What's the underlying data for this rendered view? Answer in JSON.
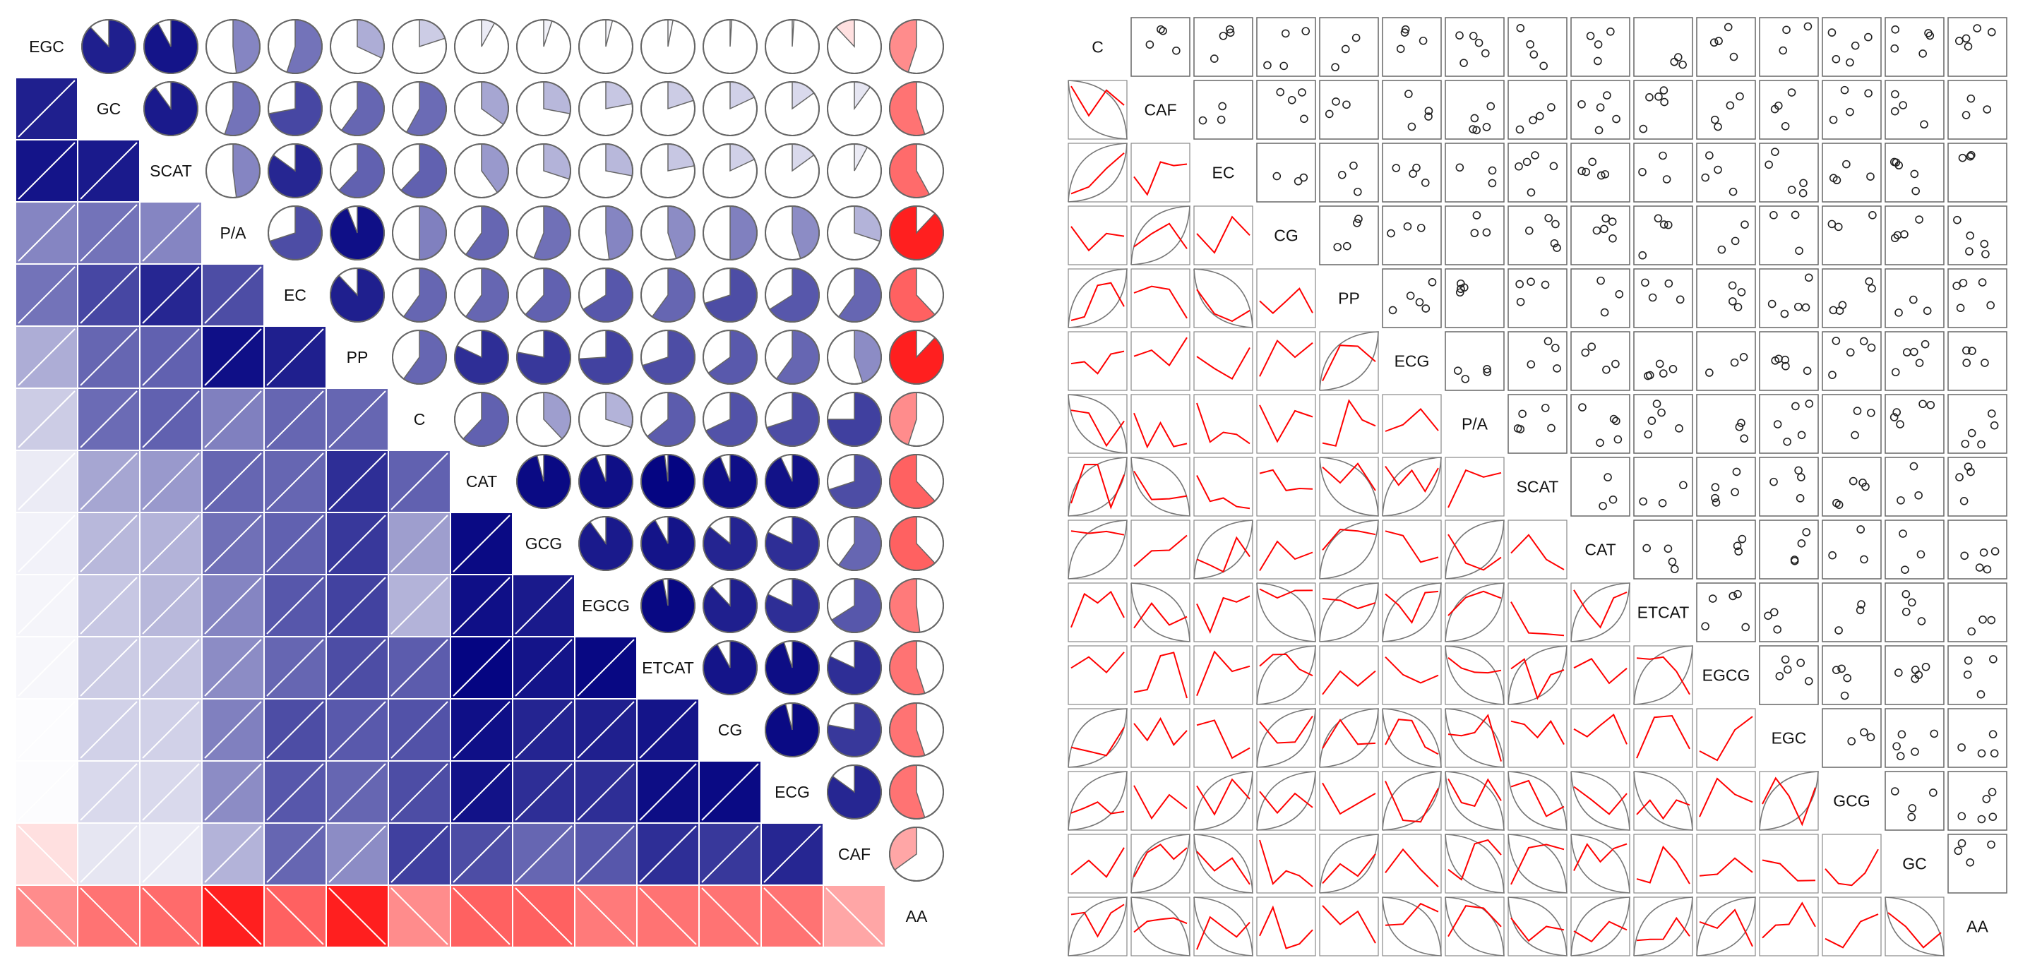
{
  "chart_data": [
    {
      "type": "heatmap",
      "variables": [
        "EGC",
        "GC",
        "SCAT",
        "P/A",
        "EC",
        "PP",
        "C",
        "CAT",
        "GCG",
        "EGCG",
        "ETCAT",
        "CG",
        "ECG",
        "CAF",
        "AA"
      ],
      "lower_panel": "shade",
      "upper_panel": "pie",
      "correlations": [
        [
          1.0,
          0.88,
          0.92,
          0.48,
          0.55,
          0.32,
          0.2,
          0.08,
          0.05,
          0.04,
          0.03,
          0.01,
          0.01,
          -0.12,
          -0.45
        ],
        [
          0.88,
          1.0,
          0.9,
          0.55,
          0.72,
          0.6,
          0.58,
          0.35,
          0.28,
          0.22,
          0.2,
          0.18,
          0.15,
          0.1,
          -0.55
        ],
        [
          0.92,
          0.9,
          1.0,
          0.48,
          0.85,
          0.62,
          0.62,
          0.4,
          0.3,
          0.28,
          0.22,
          0.18,
          0.15,
          0.08,
          -0.58
        ],
        [
          0.48,
          0.55,
          0.48,
          1.0,
          0.7,
          0.94,
          0.5,
          0.6,
          0.56,
          0.48,
          0.45,
          0.5,
          0.45,
          0.3,
          -0.88
        ],
        [
          0.55,
          0.72,
          0.85,
          0.7,
          1.0,
          0.88,
          0.6,
          0.6,
          0.62,
          0.66,
          0.6,
          0.7,
          0.66,
          0.6,
          -0.62
        ],
        [
          0.32,
          0.6,
          0.62,
          0.94,
          0.88,
          1.0,
          0.6,
          0.82,
          0.78,
          0.74,
          0.7,
          0.65,
          0.6,
          0.45,
          -0.88
        ],
        [
          0.2,
          0.58,
          0.62,
          0.5,
          0.6,
          0.6,
          1.0,
          0.62,
          0.38,
          0.3,
          0.64,
          0.68,
          0.7,
          0.75,
          -0.45
        ],
        [
          0.08,
          0.35,
          0.4,
          0.6,
          0.6,
          0.82,
          0.62,
          1.0,
          0.96,
          0.94,
          0.98,
          0.94,
          0.93,
          0.7,
          -0.62
        ],
        [
          0.05,
          0.28,
          0.3,
          0.56,
          0.62,
          0.78,
          0.38,
          0.96,
          1.0,
          0.9,
          0.92,
          0.86,
          0.82,
          0.6,
          -0.62
        ],
        [
          0.04,
          0.22,
          0.28,
          0.48,
          0.66,
          0.74,
          0.3,
          0.94,
          0.9,
          1.0,
          0.97,
          0.88,
          0.82,
          0.66,
          -0.52
        ],
        [
          0.03,
          0.2,
          0.22,
          0.45,
          0.6,
          0.7,
          0.64,
          0.98,
          0.92,
          0.97,
          1.0,
          0.92,
          0.95,
          0.82,
          -0.55
        ],
        [
          0.01,
          0.18,
          0.18,
          0.5,
          0.7,
          0.65,
          0.68,
          0.94,
          0.86,
          0.88,
          0.92,
          1.0,
          0.96,
          0.78,
          -0.55
        ],
        [
          0.01,
          0.15,
          0.15,
          0.45,
          0.66,
          0.6,
          0.7,
          0.93,
          0.82,
          0.82,
          0.95,
          0.96,
          1.0,
          0.85,
          -0.55
        ],
        [
          -0.12,
          0.1,
          0.08,
          0.3,
          0.6,
          0.45,
          0.75,
          0.7,
          0.6,
          0.66,
          0.82,
          0.78,
          0.85,
          1.0,
          -0.35
        ],
        [
          -0.45,
          -0.55,
          -0.58,
          -0.88,
          -0.62,
          -0.88,
          -0.45,
          -0.62,
          -0.62,
          -0.52,
          -0.55,
          -0.55,
          -0.55,
          -0.35,
          1.0
        ]
      ],
      "colors": {
        "positive": "#00007f",
        "negative": "#ff0000",
        "neutral": "#ffffff"
      }
    },
    {
      "type": "scatter",
      "variables": [
        "C",
        "CAF",
        "EC",
        "CG",
        "PP",
        "ECG",
        "P/A",
        "SCAT",
        "CAT",
        "ETCAT",
        "EGCG",
        "EGC",
        "GCG",
        "GC",
        "AA"
      ],
      "upper_panel": "points",
      "lower_panel": "line",
      "colors": {
        "line": "#ff0000",
        "point": "#222222",
        "ellipse": "#555555"
      }
    }
  ]
}
